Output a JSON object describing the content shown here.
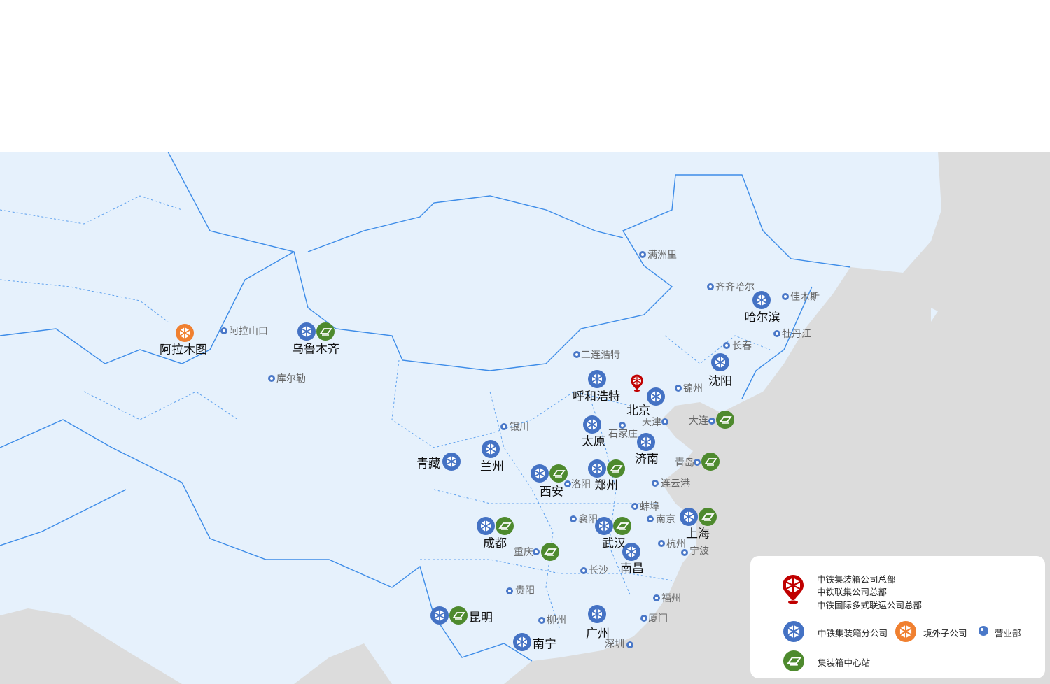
{
  "colors": {
    "land": "#e6f1fc",
    "sea": "#dcdcdc",
    "border": "#3d8ce8",
    "branch": "#4472c4",
    "overseas": "#f08030",
    "hub": "#4e8a2e",
    "hq": "#c00000",
    "office": "#4a78c8"
  },
  "markers": [
    {
      "label": "阿拉木图",
      "style": "big",
      "icons": [
        "overseas"
      ]
    },
    {
      "label": "阿拉山口",
      "style": "small",
      "icons": [
        "office"
      ]
    },
    {
      "label": "乌鲁木齐",
      "style": "big",
      "icons": [
        "branch",
        "hub"
      ]
    },
    {
      "label": "库尔勒",
      "style": "small",
      "icons": [
        "office"
      ]
    },
    {
      "label": "满洲里",
      "style": "small",
      "icons": [
        "office"
      ]
    },
    {
      "label": "齐齐哈尔",
      "style": "small",
      "icons": [
        "office"
      ]
    },
    {
      "label": "哈尔滨",
      "style": "big",
      "icons": [
        "branch"
      ]
    },
    {
      "label": "佳木斯",
      "style": "small",
      "icons": [
        "office"
      ]
    },
    {
      "label": "牡丹江",
      "style": "small",
      "icons": [
        "office"
      ]
    },
    {
      "label": "长春",
      "style": "small",
      "icons": [
        "office"
      ]
    },
    {
      "label": "沈阳",
      "style": "big",
      "icons": [
        "branch"
      ]
    },
    {
      "label": "二连浩特",
      "style": "small",
      "icons": [
        "office"
      ]
    },
    {
      "label": "呼和浩特",
      "style": "big",
      "icons": [
        "branch"
      ]
    },
    {
      "label": "北京",
      "style": "big",
      "icons": [
        "hq",
        "branch"
      ]
    },
    {
      "label": "锦州",
      "style": "small",
      "icons": [
        "office"
      ]
    },
    {
      "label": "天津",
      "style": "small",
      "icons": [
        "office"
      ]
    },
    {
      "label": "大连",
      "style": "small",
      "icons": [
        "office",
        "hub"
      ]
    },
    {
      "label": "银川",
      "style": "small",
      "icons": [
        "office"
      ]
    },
    {
      "label": "太原",
      "style": "big",
      "icons": [
        "branch"
      ]
    },
    {
      "label": "石家庄",
      "style": "small",
      "icons": [
        "office"
      ]
    },
    {
      "label": "济南",
      "style": "big",
      "icons": [
        "branch"
      ]
    },
    {
      "label": "青岛",
      "style": "small",
      "icons": [
        "office",
        "hub"
      ]
    },
    {
      "label": "青藏",
      "style": "big",
      "icons": [
        "branch"
      ]
    },
    {
      "label": "兰州",
      "style": "big",
      "icons": [
        "branch"
      ]
    },
    {
      "label": "西安",
      "style": "big",
      "icons": [
        "branch",
        "hub"
      ]
    },
    {
      "label": "洛阳",
      "style": "small",
      "icons": [
        "office"
      ]
    },
    {
      "label": "郑州",
      "style": "big",
      "icons": [
        "branch",
        "hub"
      ]
    },
    {
      "label": "连云港",
      "style": "small",
      "icons": [
        "office"
      ]
    },
    {
      "label": "蚌埠",
      "style": "small",
      "icons": [
        "office"
      ]
    },
    {
      "label": "襄阳",
      "style": "small",
      "icons": [
        "office"
      ]
    },
    {
      "label": "南京",
      "style": "small",
      "icons": [
        "office"
      ]
    },
    {
      "label": "上海",
      "style": "big",
      "icons": [
        "branch",
        "hub"
      ]
    },
    {
      "label": "成都",
      "style": "big",
      "icons": [
        "branch",
        "hub"
      ]
    },
    {
      "label": "武汉",
      "style": "big",
      "icons": [
        "branch",
        "hub"
      ]
    },
    {
      "label": "杭州",
      "style": "small",
      "icons": [
        "office"
      ]
    },
    {
      "label": "宁波",
      "style": "small",
      "icons": [
        "office"
      ]
    },
    {
      "label": "重庆",
      "style": "small",
      "icons": [
        "office",
        "hub"
      ]
    },
    {
      "label": "南昌",
      "style": "big",
      "icons": [
        "branch"
      ]
    },
    {
      "label": "长沙",
      "style": "small",
      "icons": [
        "office"
      ]
    },
    {
      "label": "贵阳",
      "style": "small",
      "icons": [
        "office"
      ]
    },
    {
      "label": "福州",
      "style": "small",
      "icons": [
        "office"
      ]
    },
    {
      "label": "昆明",
      "style": "big",
      "icons": [
        "branch",
        "hub"
      ]
    },
    {
      "label": "柳州",
      "style": "small",
      "icons": [
        "office"
      ]
    },
    {
      "label": "厦门",
      "style": "small",
      "icons": [
        "office"
      ]
    },
    {
      "label": "广州",
      "style": "big",
      "icons": [
        "branch"
      ]
    },
    {
      "label": "南宁",
      "style": "big",
      "icons": [
        "branch"
      ]
    },
    {
      "label": "深圳",
      "style": "small",
      "icons": [
        "office"
      ]
    }
  ],
  "legend": {
    "hq_lines": [
      "中铁集装箱公司总部",
      "中铁联集公司总部",
      "中铁国际多式联运公司总部"
    ],
    "branch": "中铁集装箱分公司",
    "overseas": "境外子公司",
    "office": "营业部",
    "hub": "集装箱中心站"
  }
}
